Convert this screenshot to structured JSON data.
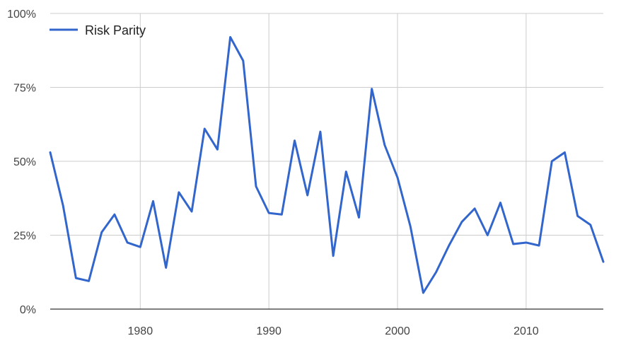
{
  "chart_data": {
    "type": "line",
    "title": "",
    "xlabel": "",
    "ylabel": "",
    "xlim": [
      1973,
      2016
    ],
    "ylim": [
      0,
      1
    ],
    "x_ticks": [
      1980,
      1990,
      2000,
      2010
    ],
    "x_tick_labels": [
      "1980",
      "1990",
      "2000",
      "2010"
    ],
    "y_ticks": [
      0,
      0.25,
      0.5,
      0.75,
      1
    ],
    "y_tick_labels": [
      "0%",
      "25%",
      "50%",
      "75%",
      "100%"
    ],
    "grid": true,
    "legend": {
      "position": "top-left"
    },
    "series": [
      {
        "name": "Risk Parity",
        "color": "#3366cc",
        "x": [
          1973,
          1974,
          1975,
          1976,
          1977,
          1978,
          1979,
          1980,
          1981,
          1982,
          1983,
          1984,
          1985,
          1986,
          1987,
          1988,
          1989,
          1990,
          1991,
          1992,
          1993,
          1994,
          1995,
          1996,
          1997,
          1998,
          1999,
          2000,
          2001,
          2002,
          2003,
          2004,
          2005,
          2006,
          2007,
          2008,
          2009,
          2010,
          2011,
          2012,
          2013,
          2014,
          2015,
          2016
        ],
        "values": [
          0.53,
          0.35,
          0.105,
          0.095,
          0.26,
          0.32,
          0.225,
          0.21,
          0.365,
          0.14,
          0.395,
          0.33,
          0.61,
          0.54,
          0.92,
          0.84,
          0.415,
          0.325,
          0.32,
          0.57,
          0.385,
          0.6,
          0.18,
          0.465,
          0.31,
          0.745,
          0.555,
          0.445,
          0.28,
          0.055,
          0.125,
          0.215,
          0.295,
          0.34,
          0.25,
          0.36,
          0.22,
          0.225,
          0.215,
          0.5,
          0.53,
          0.315,
          0.285,
          0.16
        ]
      }
    ]
  }
}
